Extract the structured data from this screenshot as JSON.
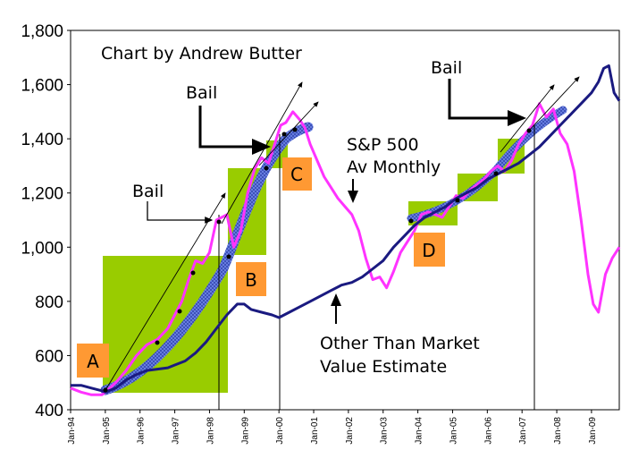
{
  "chart_data": {
    "type": "line",
    "title": "Chart by Andrew Butter",
    "xlabel": "",
    "ylabel": "",
    "x_range": [
      "Jan-94",
      "Sep-09"
    ],
    "ylim": [
      400,
      1800
    ],
    "y_ticks": [
      "400",
      "600",
      "800",
      "1,000",
      "1,200",
      "1,400",
      "1,600",
      "1,800"
    ],
    "x_ticks": [
      "Jan-94",
      "Jan-95",
      "Jan-96",
      "Jan-97",
      "Jan-98",
      "Jan-99",
      "Jan-00",
      "Jan-01",
      "Jan-02",
      "Jan-03",
      "Jan-04",
      "Jan-05",
      "Jan-06",
      "Jan-07",
      "Jan-08",
      "Jan-09"
    ],
    "grid": false,
    "colors": {
      "sp500": "#ff33ff",
      "otmv": "#1a1a80",
      "boxes": "#99cc00",
      "box_labels": "#ff9933",
      "trend_band": "#6f86e8"
    },
    "series": [
      {
        "name": "S&P 500 Av Monthly",
        "x": [
          1994.0,
          1994.3,
          1994.6,
          1994.9,
          1995.0,
          1995.3,
          1995.6,
          1995.9,
          1996.2,
          1996.5,
          1996.8,
          1997.0,
          1997.2,
          1997.4,
          1997.6,
          1997.8,
          1998.0,
          1998.2,
          1998.5,
          1998.7,
          1998.9,
          1999.1,
          1999.3,
          1999.5,
          1999.7,
          1999.9,
          2000.05,
          2000.2,
          2000.4,
          2000.6,
          2000.75,
          2000.9,
          2001.1,
          2001.3,
          2001.5,
          2001.7,
          2001.9,
          2002.1,
          2002.3,
          2002.5,
          2002.7,
          2002.9,
          2003.1,
          2003.3,
          2003.5,
          2003.7,
          2003.9,
          2004.1,
          2004.3,
          2004.5,
          2004.7,
          2004.9,
          2005.1,
          2005.3,
          2005.5,
          2005.7,
          2005.9,
          2006.1,
          2006.3,
          2006.5,
          2006.7,
          2006.9,
          2007.1,
          2007.3,
          2007.5,
          2007.7,
          2007.9,
          2008.1,
          2008.3,
          2008.5,
          2008.7,
          2008.9,
          2009.05,
          2009.2,
          2009.4,
          2009.6,
          2009.8
        ],
        "values": [
          480,
          465,
          455,
          455,
          465,
          500,
          545,
          600,
          640,
          660,
          700,
          750,
          800,
          880,
          950,
          940,
          980,
          1100,
          1120,
          1000,
          1060,
          1200,
          1290,
          1330,
          1310,
          1390,
          1450,
          1460,
          1500,
          1470,
          1440,
          1380,
          1320,
          1260,
          1220,
          1180,
          1150,
          1120,
          1060,
          960,
          880,
          890,
          850,
          910,
          980,
          1020,
          1060,
          1120,
          1130,
          1120,
          1110,
          1150,
          1190,
          1180,
          1210,
          1230,
          1250,
          1280,
          1300,
          1280,
          1320,
          1380,
          1420,
          1450,
          1530,
          1480,
          1510,
          1420,
          1380,
          1280,
          1100,
          900,
          790,
          760,
          900,
          960,
          1000
        ]
      },
      {
        "name": "Other Than Market Value Estimate",
        "x": [
          1994.0,
          1994.3,
          1994.6,
          1994.9,
          1995.0,
          1995.3,
          1995.6,
          1995.9,
          1996.2,
          1996.5,
          1996.8,
          1997.0,
          1997.3,
          1997.6,
          1997.9,
          1998.2,
          1998.5,
          1998.8,
          1999.0,
          1999.2,
          1999.5,
          1999.8,
          2000.0,
          2000.3,
          2000.6,
          2000.9,
          2001.2,
          2001.5,
          2001.8,
          2002.1,
          2002.4,
          2002.7,
          2003.0,
          2003.3,
          2003.6,
          2003.9,
          2004.2,
          2004.5,
          2004.8,
          2005.1,
          2005.4,
          2005.7,
          2006.0,
          2006.3,
          2006.6,
          2006.9,
          2007.2,
          2007.5,
          2007.8,
          2008.1,
          2008.4,
          2008.7,
          2009.0,
          2009.2,
          2009.35,
          2009.5,
          2009.65,
          2009.8
        ],
        "values": [
          490,
          490,
          480,
          470,
          465,
          480,
          510,
          530,
          545,
          550,
          555,
          565,
          580,
          610,
          650,
          700,
          750,
          790,
          790,
          770,
          760,
          750,
          740,
          760,
          780,
          800,
          820,
          840,
          860,
          870,
          890,
          920,
          950,
          1000,
          1040,
          1080,
          1110,
          1130,
          1150,
          1180,
          1200,
          1220,
          1250,
          1270,
          1290,
          1310,
          1340,
          1370,
          1410,
          1450,
          1490,
          1530,
          1570,
          1610,
          1660,
          1670,
          1570,
          1540
        ]
      }
    ],
    "annotations": [
      "Bail",
      "Bail",
      "Bail",
      "S&P 500",
      "Av Monthly",
      "Other Than Market",
      "Value Estimate",
      "A",
      "B",
      "C",
      "D"
    ],
    "boxes": [
      {
        "label": "A",
        "x": [
          1995.0,
          1998.4
        ],
        "y": [
          460,
          960
        ]
      },
      {
        "label": "B",
        "x": [
          1998.6,
          1999.6
        ],
        "y": [
          965,
          1285
        ]
      },
      {
        "label": "C",
        "x": [
          1999.6,
          2000.2
        ],
        "y": [
          1285,
          1390
        ]
      },
      {
        "label": "D1",
        "x": [
          2003.8,
          2005.0
        ],
        "y": [
          1080,
          1170
        ]
      },
      {
        "label": "D2",
        "x": [
          2005.0,
          2006.2
        ],
        "y": [
          1170,
          1270
        ]
      },
      {
        "label": "D3",
        "x": [
          2006.2,
          2007.0
        ],
        "y": [
          1270,
          1400
        ]
      }
    ]
  },
  "labels": {
    "title": "Chart by Andrew Butter",
    "bail_1": "Bail",
    "bail_2": "Bail",
    "bail_3": "Bail",
    "sp_line1": "S&P 500",
    "sp_line2": "Av Monthly",
    "otmv_line1": "Other Than Market",
    "otmv_line2": "Value Estimate",
    "box_a": "A",
    "box_b": "B",
    "box_c": "C",
    "box_d": "D"
  }
}
